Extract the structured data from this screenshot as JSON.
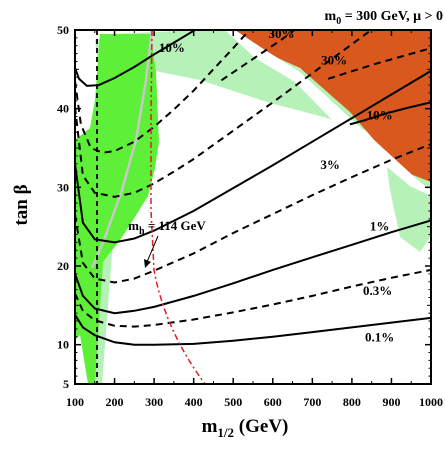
{
  "chart_data": {
    "type": "line",
    "title": "m0 = 300 GeV,  μ > 0",
    "title_parts": {
      "m": "m",
      "sub0": "0",
      "rest": " = 300 GeV,  μ > 0"
    },
    "xlabel": "m1/2 (GeV)",
    "xlabel_parts": {
      "m": "m",
      "sub": "1/2",
      "rest": " (GeV)"
    },
    "ylabel": "tan β",
    "xlim": [
      100,
      1000
    ],
    "ylim": [
      5,
      50
    ],
    "x_ticks": [
      100,
      200,
      300,
      400,
      500,
      600,
      700,
      800,
      900,
      1000
    ],
    "y_ticks": [
      5,
      10,
      20,
      30,
      40,
      50
    ],
    "grid": false,
    "legend": "none",
    "colors": {
      "orange": "#d8581e",
      "light_green": "#b6f2b8",
      "bright_green": "#5ef039",
      "red": "#e02020",
      "grey": "#c8c8c8"
    },
    "contours": [
      {
        "label": "0.1%",
        "style": "solid",
        "label_at": [
          870,
          10.4
        ],
        "x": [
          100,
          120,
          150,
          200,
          250,
          300,
          400,
          500,
          600,
          700,
          800,
          900,
          1000
        ],
        "y": [
          13.8,
          12.2,
          11.2,
          10.3,
          10.0,
          10.0,
          10.1,
          10.5,
          11.0,
          11.6,
          12.2,
          12.8,
          13.4
        ]
      },
      {
        "label": "0.3%",
        "style": "dashed",
        "label_at": [
          865,
          16.3
        ],
        "x": [
          100,
          120,
          150,
          200,
          250,
          300,
          400,
          500,
          600,
          700,
          800,
          900,
          1000
        ],
        "y": [
          16.5,
          14.3,
          13.1,
          12.4,
          12.3,
          12.5,
          13.2,
          14.1,
          15.1,
          16.2,
          17.4,
          18.5,
          19.5
        ]
      },
      {
        "label": "1%",
        "style": "solid",
        "label_at": [
          870,
          24.5
        ],
        "x": [
          100,
          120,
          150,
          200,
          250,
          300,
          400,
          500,
          600,
          700,
          800,
          900,
          1000
        ],
        "y": [
          19.0,
          16.2,
          14.6,
          14.0,
          14.3,
          14.8,
          16.2,
          17.8,
          19.5,
          21.1,
          22.7,
          24.3,
          25.8
        ]
      },
      {
        "label": "3%",
        "style": "dashed",
        "label_at": [
          745,
          32.3
        ],
        "x": [
          100,
          120,
          150,
          200,
          250,
          300,
          400,
          500,
          600,
          700,
          800,
          900,
          1000
        ],
        "y": [
          26.5,
          20.4,
          18.4,
          17.9,
          18.4,
          19.4,
          21.6,
          24.2,
          26.6,
          29.0,
          31.3,
          33.5,
          35.5
        ]
      },
      {
        "label": "",
        "style": "solid",
        "label_at": null,
        "x": [
          100,
          120,
          150,
          200,
          250,
          300,
          400,
          500,
          600,
          700,
          800,
          900,
          1000
        ],
        "y": [
          33.0,
          25.5,
          23.4,
          23.0,
          23.5,
          24.5,
          27.0,
          29.9,
          32.8,
          35.8,
          38.8,
          41.8,
          44.8
        ]
      },
      {
        "label": "10%",
        "style": "solid",
        "label_at": [
          870,
          38.6
        ],
        "x": [
          795,
          830,
          880,
          940,
          1000
        ],
        "y": [
          38.0,
          38.5,
          39.3,
          40.1,
          40.8
        ]
      },
      {
        "label": "",
        "style": "dashed",
        "label_at": null,
        "x": [
          100,
          120,
          150,
          200,
          250,
          300,
          350,
          400,
          500,
          600,
          700,
          800,
          900,
          1000
        ],
        "y": [
          40.2,
          31.5,
          29.3,
          28.8,
          29.3,
          30.5,
          32.0,
          33.6,
          37.2,
          40.8,
          44.5,
          48.2,
          51.9,
          55.5
        ]
      },
      {
        "label": "30%",
        "style": "dashed",
        "label_at": [
          755,
          45.6
        ],
        "x": [
          740,
          790,
          860,
          930,
          1000
        ],
        "y": [
          43.8,
          44.6,
          45.7,
          46.7,
          47.7
        ]
      },
      {
        "label": "",
        "style": "dashed",
        "label_at": null,
        "x": [
          100,
          115,
          140,
          170,
          200,
          250,
          300,
          350,
          400,
          450,
          500,
          550
        ],
        "y": [
          43.5,
          38.0,
          35.0,
          34.4,
          34.6,
          35.8,
          37.7,
          39.9,
          42.3,
          45.0,
          47.7,
          50.5
        ]
      },
      {
        "label": "10%",
        "style": "solid",
        "label_at": [
          345,
          47.2
        ],
        "x": [
          100,
          110,
          130,
          160,
          200,
          250,
          300,
          350,
          400,
          430
        ],
        "y": [
          45.2,
          43.8,
          42.9,
          43.0,
          43.9,
          45.3,
          46.9,
          48.4,
          49.9,
          50.8
        ]
      },
      {
        "label": "30%",
        "style": "dashed",
        "label_at": [
          622,
          49.0
        ],
        "x": [
          470,
          520,
          570,
          620,
          660
        ],
        "y": [
          43.6,
          45.3,
          47.0,
          48.7,
          50.2
        ]
      }
    ],
    "annotations": [
      {
        "text_main": "m",
        "text_sub": "h",
        "text_rest": " = 114 GeV",
        "at": [
          285,
          24.6
        ]
      }
    ]
  }
}
